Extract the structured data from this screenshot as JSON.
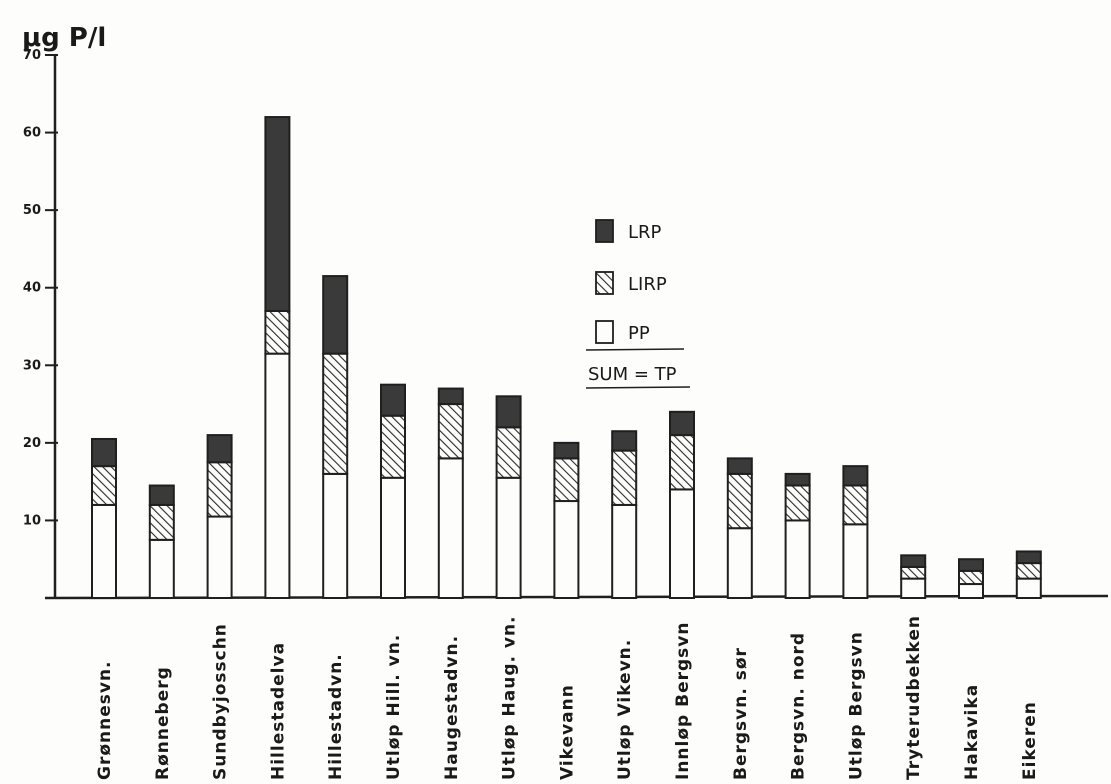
{
  "chart_data": {
    "type": "bar",
    "stacked": true,
    "ylabel": "μg P/l",
    "ylim": [
      0,
      70
    ],
    "yticks": [
      "10",
      "20",
      "30",
      "40",
      "50",
      "60",
      "70"
    ],
    "categories": [
      "Grønnesvn.",
      "Rønneberg",
      "Sundbyjosschn",
      "Hillestadelva",
      "Hillestadvn.",
      "Utløp Hill. vn.",
      "Haugestadvn.",
      "Utløp Haug. vn.",
      "Vikevann",
      "Utløp Vikevn.",
      "Innløp Bergsvn",
      "Bergsvn. sør",
      "Bergsvn. nord",
      "Utløp Bergsvn",
      "Tryterudbekken",
      "Hakavika",
      "Eikeren"
    ],
    "series": [
      {
        "name": "PP",
        "pattern": "empty",
        "values": [
          12,
          7.5,
          10.5,
          31.5,
          16,
          15.5,
          18,
          15.5,
          12.5,
          12,
          14,
          9,
          10,
          9.5,
          2.5,
          1.8,
          2.5
        ]
      },
      {
        "name": "LIRP",
        "pattern": "hatched",
        "values": [
          5,
          4.5,
          7,
          5.5,
          15.5,
          8,
          7,
          6.5,
          5.5,
          7,
          7,
          7,
          4.5,
          5,
          1.5,
          1.7,
          2
        ]
      },
      {
        "name": "LRP",
        "pattern": "solid",
        "values": [
          3.5,
          2.5,
          3.5,
          25,
          10,
          4,
          2,
          4,
          2,
          2.5,
          3,
          2,
          1.5,
          2.5,
          1.5,
          1.5,
          1.5
        ]
      }
    ],
    "legend": {
      "placement": "center-right",
      "items": [
        "LRP",
        "LIRP",
        "PP"
      ],
      "sum_label": "SUM = TP"
    },
    "grid": false
  },
  "colors": {
    "ink": "#1f1f1f",
    "solid": "#3a3a3a",
    "hatch": "#2b2b2b",
    "paper": "#fdfdfb"
  }
}
